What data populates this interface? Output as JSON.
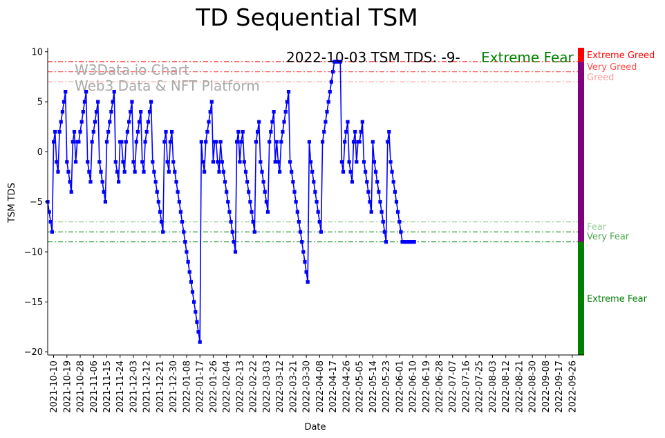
{
  "chart_data": {
    "type": "line",
    "title": "TD Sequential TSM",
    "xlabel": "Date",
    "ylabel": "TSM TDS",
    "ylim": [
      -20.3,
      10.4
    ],
    "yticks": [
      -20,
      -15,
      -10,
      -5,
      0,
      5,
      10
    ],
    "xlim": [
      "2021-10-06",
      "2022-10-04"
    ],
    "x_tick_labels": [
      "2021-10-10",
      "2021-10-19",
      "2021-10-28",
      "2021-11-06",
      "2021-11-15",
      "2021-11-24",
      "2021-12-03",
      "2021-12-12",
      "2021-12-21",
      "2021-12-30",
      "2022-01-08",
      "2022-01-17",
      "2022-01-26",
      "2022-02-04",
      "2022-02-13",
      "2022-02-22",
      "2022-03-03",
      "2022-03-12",
      "2022-03-21",
      "2022-03-30",
      "2022-04-08",
      "2022-04-17",
      "2022-04-26",
      "2022-05-05",
      "2022-05-14",
      "2022-05-23",
      "2022-06-01",
      "2022-06-10",
      "2022-06-19",
      "2022-06-28",
      "2022-07-07",
      "2022-07-16",
      "2022-07-25",
      "2022-08-03",
      "2022-08-12",
      "2022-08-21",
      "2022-08-30",
      "2022-09-08",
      "2022-09-17",
      "2022-09-26"
    ],
    "grid": false,
    "annotation": {
      "date_text": "2022-10-03 TSM TDS: -9-",
      "sentiment_text": "Extreme Fear",
      "sentiment_color": "#008000"
    },
    "watermark": [
      "W3Data.io Chart",
      "Web3 Data & NFT Platform"
    ],
    "reference_lines": [
      {
        "value": 9,
        "label": "Extreme Greed",
        "color": "#ff0000",
        "opacity": 1.0
      },
      {
        "value": 8,
        "label": "Very Greed",
        "color": "#ff0000",
        "opacity": 0.7
      },
      {
        "value": 7,
        "label": "Greed",
        "color": "#ff0000",
        "opacity": 0.4
      },
      {
        "value": -7,
        "label": "Fear",
        "color": "#008000",
        "opacity": 0.4
      },
      {
        "value": -8,
        "label": "Very Fear",
        "color": "#008000",
        "opacity": 0.7
      },
      {
        "value": -9,
        "label": "Extreme Fear",
        "color": "#008000",
        "opacity": 1.0
      }
    ],
    "right_bar": [
      {
        "from": 9,
        "to": 10.4,
        "color": "#ff0000"
      },
      {
        "from": -9,
        "to": 9,
        "color": "#800080"
      },
      {
        "from": -20.3,
        "to": -9,
        "color": "#008000"
      }
    ],
    "line_color": "#0000ff",
    "series": [
      {
        "start_date": "2021-10-06",
        "values": [
          -5,
          -6,
          -7,
          -8,
          1,
          2,
          -1,
          -2,
          2,
          3,
          4,
          5,
          6,
          -1,
          -2,
          -3,
          -4,
          1,
          2,
          -1,
          1,
          1,
          2,
          3,
          4,
          5,
          6,
          -1,
          -2,
          -3,
          1,
          2,
          3,
          4,
          5,
          -1,
          -2,
          -3,
          -4,
          -5,
          1,
          2,
          3,
          4,
          5,
          6,
          -1,
          -2,
          -3,
          1,
          1,
          -1,
          -2,
          1,
          2,
          3,
          4,
          5,
          -1,
          -2,
          1,
          2,
          3,
          4,
          -1,
          -2,
          1,
          2,
          3,
          4,
          5,
          -1,
          -2,
          -3,
          -4,
          -5,
          -6,
          -7,
          -8,
          1,
          2,
          -1,
          -2,
          1,
          2,
          -1,
          -2,
          -3,
          -4,
          -5,
          -6,
          -7,
          -8,
          -9,
          -10,
          -11,
          -12,
          -13,
          -14,
          -15,
          -16,
          -17,
          -18,
          -19,
          1,
          -1,
          -2,
          1,
          2,
          3,
          4,
          5,
          -1,
          1,
          1,
          -1,
          -2,
          1,
          -1,
          -2,
          -3,
          -4,
          -5,
          -6,
          -7,
          -8,
          -9,
          -10,
          1,
          2,
          -1,
          1,
          2,
          -1,
          -2,
          -3,
          -4,
          -5,
          -6,
          -7,
          -8,
          1,
          2,
          3,
          -1,
          -2,
          -3,
          -4,
          -5,
          -6,
          1,
          2,
          3,
          4,
          -1,
          1,
          -1,
          -2,
          1,
          2,
          3,
          4,
          5,
          6,
          -1,
          -2,
          -3,
          -4,
          -5,
          -6,
          -7,
          -8,
          -9,
          -10,
          -11,
          -12,
          -13,
          1,
          -1,
          -2,
          -3,
          -4,
          -5,
          -6,
          -7,
          -8,
          1,
          2,
          3,
          4,
          5,
          6,
          7,
          8,
          9,
          9,
          9,
          9,
          9,
          -1,
          -2,
          1,
          2,
          3,
          -1,
          -2,
          -3,
          1,
          2,
          -1,
          1,
          1,
          2,
          3,
          -1,
          -2,
          -3,
          -4,
          -5,
          -6,
          1,
          -1,
          -2,
          -3,
          -4,
          -5,
          -6,
          -7,
          -8,
          -9,
          1,
          2,
          -1,
          -2,
          -3,
          -4,
          -5,
          -6,
          -7,
          -8,
          -9,
          -9,
          -9,
          -9,
          -9,
          -9,
          -9,
          -9,
          -9
        ]
      }
    ]
  }
}
